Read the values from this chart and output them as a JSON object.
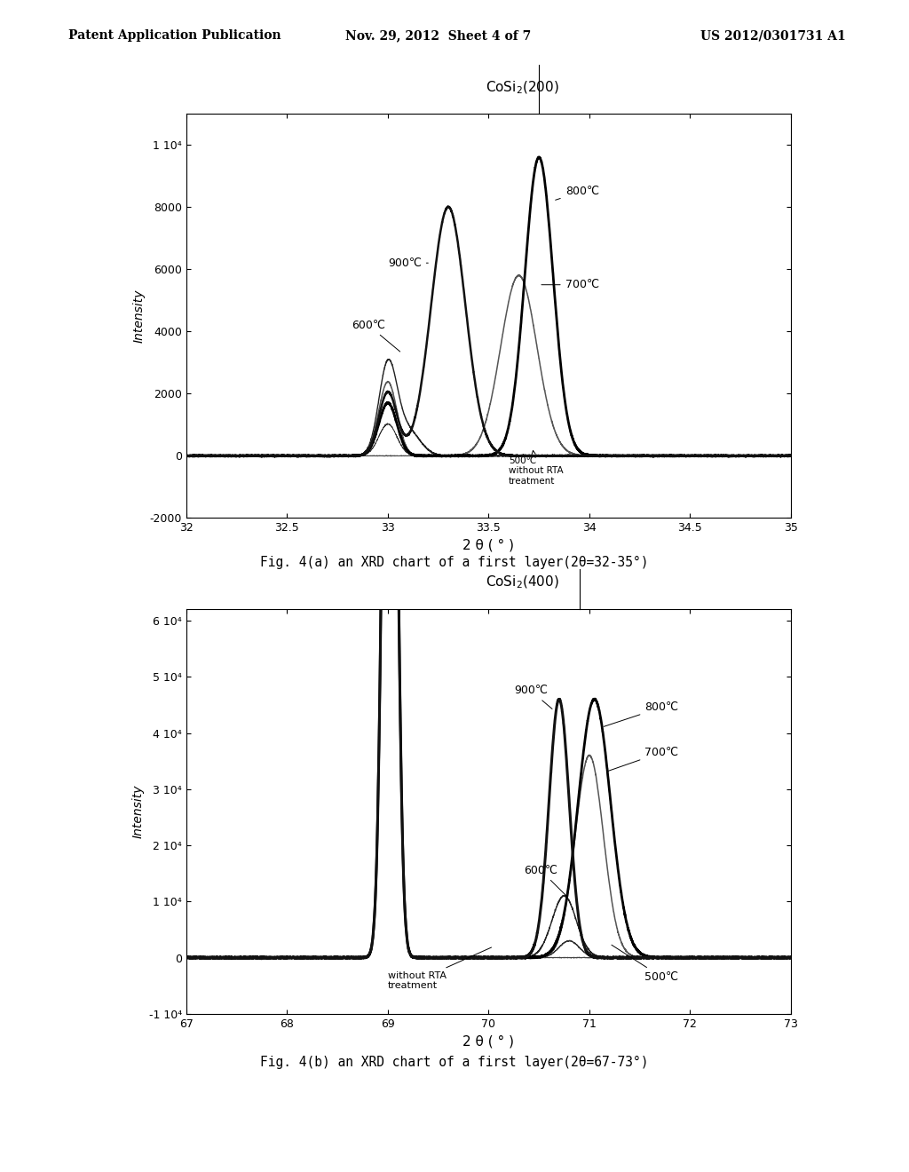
{
  "header_left": "Patent Application Publication",
  "header_center": "Nov. 29, 2012  Sheet 4 of 7",
  "header_right": "US 2012/0301731 A1",
  "fig_a_caption": "Fig. 4(a) an XRD chart of a first layer(2θ=32-35°)",
  "fig_b_caption": "Fig. 4(b) an XRD chart of a first layer(2θ=67-73°)",
  "fig_a_xlabel": "2 θ ( ° )",
  "fig_a_ylabel": "Intensity",
  "fig_b_xlabel": "2 θ ( ° )",
  "fig_b_ylabel": "Intensity",
  "bg_color": "#ffffff"
}
